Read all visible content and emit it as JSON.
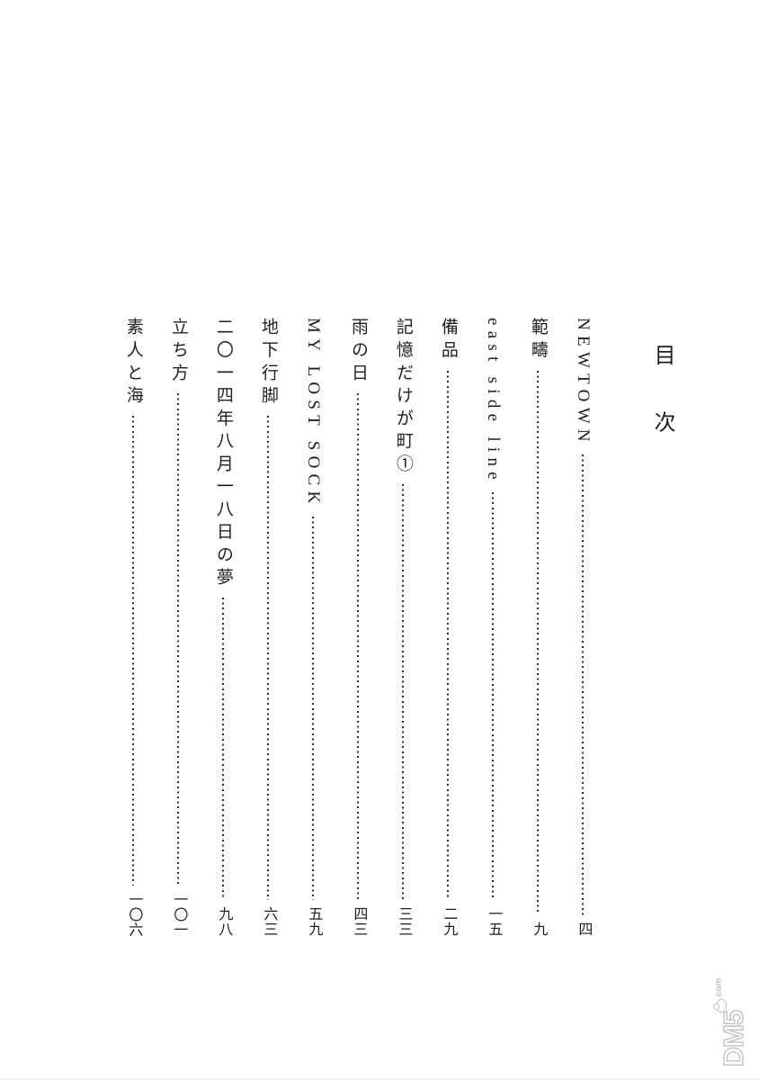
{
  "colors": {
    "text": "#1f1f1f",
    "dots": "#2b2b2b",
    "bg": "#ffffff",
    "wm": "#c2c2c2"
  },
  "toc": {
    "title": "目次",
    "entries": [
      {
        "title": "NEWTOWN",
        "page": "四"
      },
      {
        "title": "範疇",
        "page": "九"
      },
      {
        "title": "east side line",
        "page": "一五"
      },
      {
        "title": "備品",
        "page": "二九"
      },
      {
        "title": "記憶だけが町①",
        "page": "三三"
      },
      {
        "title": "雨の日",
        "page": "四三"
      },
      {
        "title": "MY LOST SOCK",
        "page": "五九"
      },
      {
        "title": "地下行脚",
        "page": "六三"
      },
      {
        "title": "二〇一四年八月一八日の夢",
        "page": "九八"
      },
      {
        "title": "立ち方",
        "page": "一〇一"
      },
      {
        "title": "素人と海",
        "page": "一〇六"
      }
    ]
  },
  "watermark": {
    "brand": "DM5",
    "suffix": ".com"
  }
}
